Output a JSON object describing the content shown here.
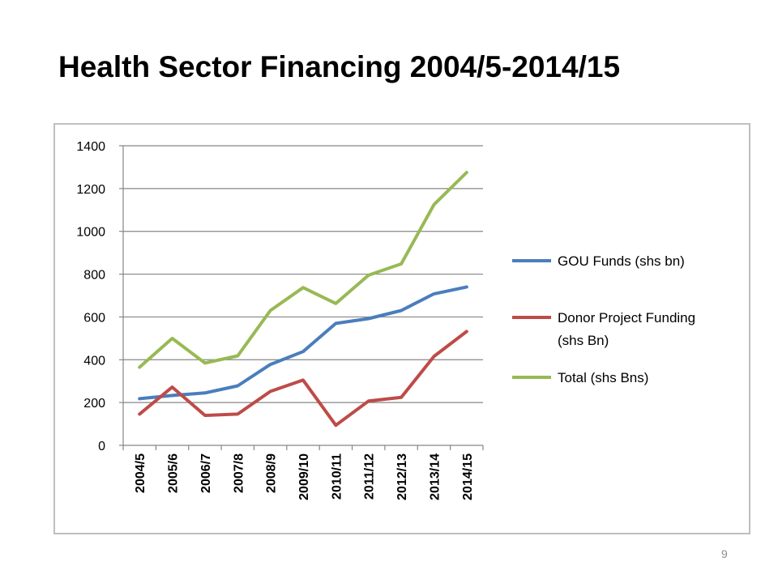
{
  "slide": {
    "title": "Health Sector Financing 2004/5-2014/15",
    "page_number": "9"
  },
  "colors": {
    "gou": "#4a7ebb",
    "donor": "#be4b48",
    "total": "#98b954",
    "grid": "#868686",
    "frame": "#bfbfbf"
  },
  "chart_data": {
    "type": "line",
    "title": "",
    "xlabel": "",
    "ylabel": "",
    "categories": [
      "2004/5",
      "2005/6",
      "2006/7",
      "2007/8",
      "2008/9",
      "2009/10",
      "2010/11",
      "2011/12",
      "2012/13",
      "2013/14",
      "2014/15"
    ],
    "ylim": [
      0,
      1400
    ],
    "yticks": [
      0,
      200,
      400,
      600,
      800,
      1000,
      1200,
      1400
    ],
    "grid": true,
    "legend_position": "right",
    "series": [
      {
        "name": "GOU Funds (shs bn)",
        "color_key": "gou",
        "values": [
          218,
          233,
          245,
          278,
          378,
          438,
          570,
          592,
          630,
          708,
          740
        ]
      },
      {
        "name": "Donor Project Funding (shs Bn)",
        "color_key": "donor",
        "values": [
          146,
          272,
          140,
          146,
          252,
          305,
          94,
          207,
          224,
          416,
          532
        ]
      },
      {
        "name": "Total (shs Bns)",
        "color_key": "total",
        "values": [
          365,
          500,
          385,
          418,
          630,
          737,
          663,
          795,
          848,
          1125,
          1275
        ]
      }
    ]
  }
}
